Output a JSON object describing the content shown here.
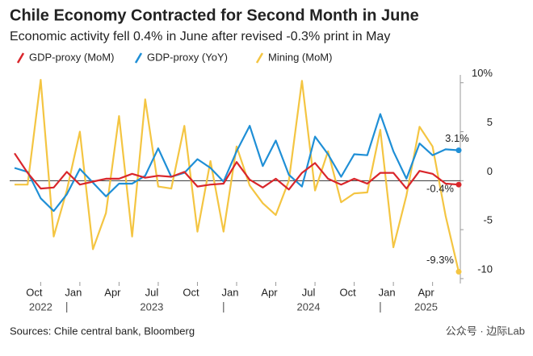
{
  "chart_data": {
    "type": "line",
    "title": "Chile Economy Contracted for Second Month in June",
    "subtitle": "Economic activity fell 0.4% in June after revised -0.3% print in May",
    "source": "Sources: Chile central bank, Bloomberg",
    "watermark": "公众号 · 边际Lab",
    "x": [
      "2022-08",
      "2022-09",
      "2022-10",
      "2022-11",
      "2022-12",
      "2023-01",
      "2023-02",
      "2023-03",
      "2023-04",
      "2023-05",
      "2023-06",
      "2023-07",
      "2023-08",
      "2023-09",
      "2023-10",
      "2023-11",
      "2023-12",
      "2024-01",
      "2024-02",
      "2024-03",
      "2024-04",
      "2024-05",
      "2024-06",
      "2024-07",
      "2024-08",
      "2024-09",
      "2024-10",
      "2024-11",
      "2024-12",
      "2025-01",
      "2025-02",
      "2025-03",
      "2025-04",
      "2025-05",
      "2025-06"
    ],
    "xticks": [
      {
        "value": "2022-10",
        "label": "Oct"
      },
      {
        "value": "2023-01",
        "label": "Jan"
      },
      {
        "value": "2023-04",
        "label": "Apr"
      },
      {
        "value": "2023-07",
        "label": "Jul"
      },
      {
        "value": "2023-10",
        "label": "Oct"
      },
      {
        "value": "2024-01",
        "label": "Jan"
      },
      {
        "value": "2024-04",
        "label": "Apr"
      },
      {
        "value": "2024-07",
        "label": "Jul"
      },
      {
        "value": "2024-10",
        "label": "Oct"
      },
      {
        "value": "2025-01",
        "label": "Jan"
      },
      {
        "value": "2025-04",
        "label": "Apr"
      }
    ],
    "years": [
      "2022",
      "2023",
      "2024",
      "2025"
    ],
    "ylim": [
      -10.5,
      10.8
    ],
    "yticks": [
      {
        "value": 10,
        "label": "10%"
      },
      5,
      0,
      -5,
      -10
    ],
    "zero_line": true,
    "series": [
      {
        "name": "GDP-proxy (MoM)",
        "color": "#d9262b",
        "values": [
          2.8,
          0.8,
          -0.8,
          -0.7,
          0.9,
          -0.4,
          -0.1,
          0.2,
          0.2,
          0.7,
          0.3,
          0.5,
          0.4,
          0.9,
          -0.6,
          -0.4,
          -0.3,
          1.9,
          0.1,
          -0.7,
          0.2,
          -0.9,
          0.8,
          1.8,
          0.2,
          -0.4,
          0.2,
          -0.3,
          0.8,
          0.8,
          -0.8,
          1.0,
          0.7,
          -0.3,
          -0.4
        ],
        "value_labels": [
          null,
          null,
          null,
          null,
          null,
          null,
          null,
          null,
          null,
          null,
          null,
          null,
          null,
          null,
          null,
          null,
          null,
          null,
          null,
          null,
          null,
          null,
          null,
          null,
          null,
          null,
          null,
          null,
          null,
          null,
          null,
          null,
          null,
          null,
          "-0.4%"
        ]
      },
      {
        "name": "GDP-proxy (YoY)",
        "color": "#1f8fd6",
        "values": [
          1.3,
          0.9,
          -1.8,
          -3.1,
          -1.4,
          1.2,
          -0.2,
          -1.6,
          -0.3,
          -0.3,
          0.5,
          3.3,
          0.4,
          0.8,
          2.2,
          1.3,
          -0.1,
          3.0,
          5.6,
          1.5,
          4.1,
          0.6,
          -0.6,
          4.5,
          2.7,
          0.4,
          2.7,
          2.6,
          6.8,
          3.0,
          0.2,
          3.8,
          2.6,
          3.2,
          3.1
        ],
        "value_labels": [
          null,
          null,
          null,
          null,
          null,
          null,
          null,
          null,
          null,
          null,
          null,
          null,
          null,
          null,
          null,
          null,
          null,
          null,
          null,
          null,
          null,
          null,
          null,
          null,
          null,
          null,
          null,
          null,
          null,
          null,
          null,
          null,
          null,
          null,
          "3.1%"
        ]
      },
      {
        "name": "Mining (MoM)",
        "color": "#f4c542",
        "values": [
          -0.4,
          -0.4,
          10.3,
          -5.7,
          -1.0,
          5.0,
          -7.0,
          -3.3,
          6.6,
          -5.7,
          8.3,
          -0.6,
          -0.8,
          5.6,
          -5.2,
          2.0,
          -5.2,
          3.5,
          -0.5,
          -2.3,
          -3.5,
          0.0,
          10.2,
          -1.0,
          3.0,
          -2.2,
          -1.3,
          -1.2,
          5.2,
          -6.8,
          -1.5,
          5.5,
          3.5,
          -3.6,
          -9.3
        ],
        "value_labels": [
          null,
          null,
          null,
          null,
          null,
          null,
          null,
          null,
          null,
          null,
          null,
          null,
          null,
          null,
          null,
          null,
          null,
          null,
          null,
          null,
          null,
          null,
          null,
          null,
          null,
          null,
          null,
          null,
          null,
          null,
          null,
          null,
          null,
          null,
          "-9.3%"
        ]
      }
    ]
  }
}
